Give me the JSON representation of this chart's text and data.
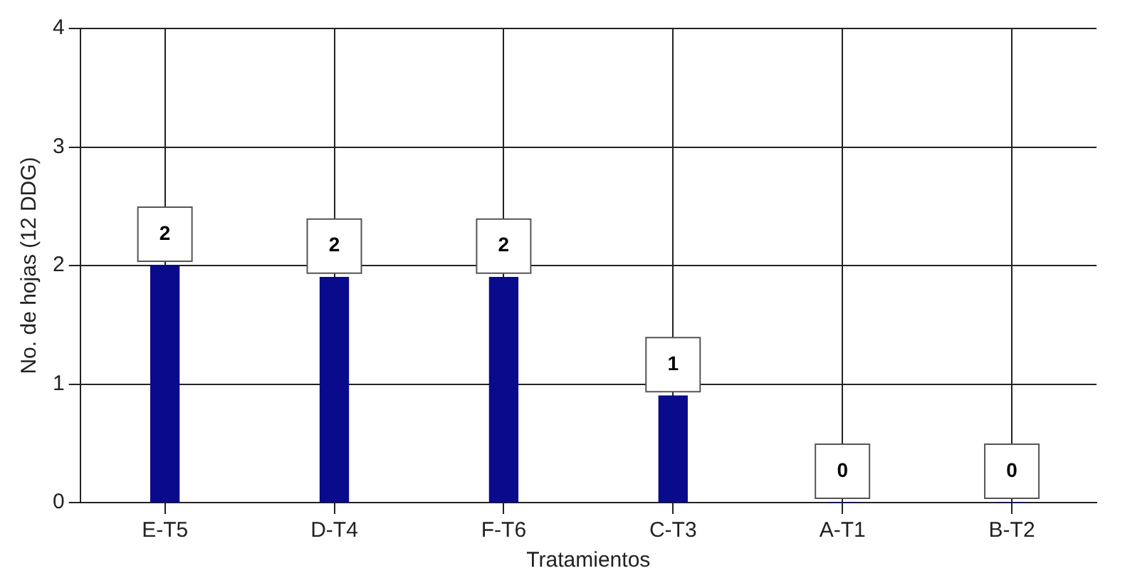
{
  "chart_data": {
    "type": "bar",
    "xlabel": "Tratamientos",
    "ylabel": "No. de hojas (12 DDG)",
    "categories": [
      "E-T5",
      "D-T4",
      "F-T6",
      "C-T3",
      "A-T1",
      "B-T2"
    ],
    "values": [
      2.0,
      1.9,
      1.9,
      0.9,
      0,
      0
    ],
    "value_labels": [
      "2",
      "2",
      "2",
      "1",
      "0",
      "0"
    ],
    "color": "#0a0a8c",
    "ylim": [
      0,
      4
    ],
    "yticks": [
      0,
      1,
      2,
      3,
      4
    ],
    "grid": true
  }
}
